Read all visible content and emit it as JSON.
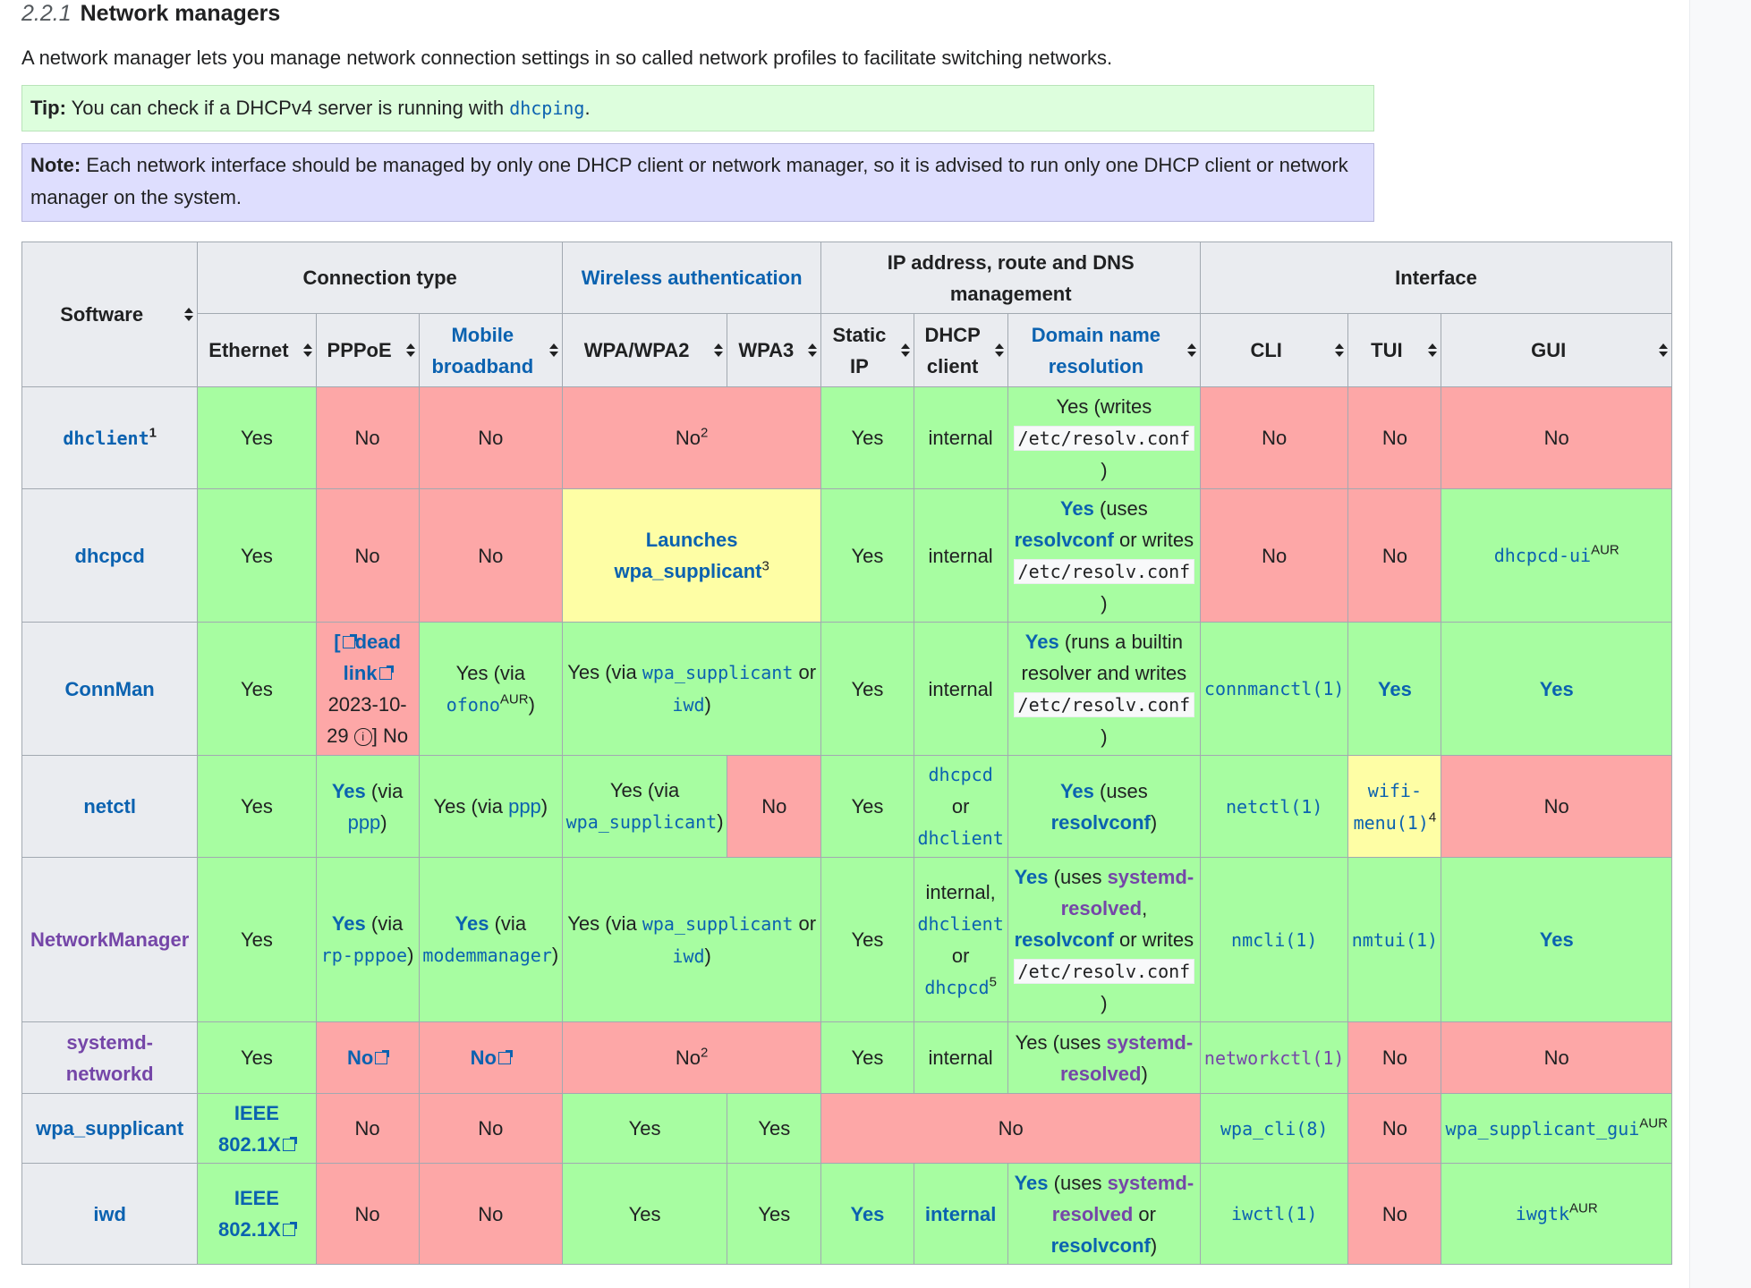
{
  "section": {
    "number": "2.2.1",
    "title": "Network managers"
  },
  "intro": "A network manager lets you manage network connection settings in so called network profiles to facilitate switching networks.",
  "tip": {
    "label": "Tip:",
    "text_before": "You can check if a DHCPv4 server is running with",
    "link": "dhcping",
    "text_after": "."
  },
  "note": {
    "label": "Note:",
    "text": "Each network interface should be managed by only one DHCP client or network manager, so it is advised to run only one DHCP client or network manager on the system."
  },
  "headers": {
    "software": "Software",
    "connection_type": "Connection type",
    "wireless_auth": "Wireless authentication",
    "ip_mgmt": "IP address, route and DNS management",
    "interface": "Interface",
    "ethernet": "Ethernet",
    "pppoe": "PPPoE",
    "mobile_broadband": "Mobile broadband",
    "wpa_wpa2": "WPA/WPA2",
    "wpa3": "WPA3",
    "static_ip": "Static IP",
    "dhcp_client": "DHCP client",
    "dns": "Domain name resolution",
    "cli": "CLI",
    "tui": "TUI",
    "gui": "GUI"
  },
  "words": {
    "yes": "Yes",
    "no": "No",
    "internal": "internal",
    "or": "or",
    "via_open": "(via",
    "close": ")",
    "resolv_path": "/etc/resolv.conf",
    "yes_writes": "Yes (writes",
    "uses_open": "(uses",
    "or_writes": "or writes",
    "aur": "AUR",
    "internal_comma": "internal,",
    "comma": ","
  },
  "rows": {
    "dhclient": {
      "name": "dhclient",
      "fn": "1",
      "wireless": "No",
      "wireless_fn": "2"
    },
    "dhcpcd": {
      "name": "dhcpcd",
      "wireless": "Launches wpa_supplicant",
      "wireless_fn": "3",
      "dns_link": "resolvconf",
      "gui": "dhcpcd-ui"
    },
    "connman": {
      "name": "ConnMan",
      "dead_link": "dead link",
      "dead_date": "2023-10-29",
      "info": "i",
      "pppoe_no": "] No",
      "mobile_tool": "ofono",
      "wifi_tool1": "wpa_supplicant",
      "wifi_tool2": "iwd",
      "dns_text": "(runs a builtin resolver and writes",
      "cli": "connmanctl(1)"
    },
    "netctl": {
      "name": "netctl",
      "pppoe_tool": "ppp",
      "mobile_text": "Yes (via",
      "mobile_tool": "ppp",
      "wpa_text": "Yes (via",
      "wpa_tool": "wpa_supplicant",
      "dhcp1": "dhcpcd",
      "dhcp2": "dhclient",
      "dns_tool": "resolvconf",
      "cli": "netctl(1)",
      "tui": "wifi-menu(1)",
      "tui_fn": "4"
    },
    "networkmanager": {
      "name": "NetworkManager",
      "pppoe_tool": "rp-pppoe",
      "mobile_tool": "modemmanager",
      "wifi_tool1": "wpa_supplicant",
      "wifi_tool2": "iwd",
      "dhcp1": "dhclient",
      "dhcp2": "dhcpcd",
      "dhcp_fn": "5",
      "dns_tool1": "systemd-resolved",
      "dns_tool2": "resolvconf",
      "cli": "nmcli(1)",
      "tui": "nmtui(1)"
    },
    "networkd": {
      "name": "systemd-networkd",
      "wireless": "No",
      "wireless_fn": "2",
      "dns_text": "Yes (uses",
      "dns_tool": "systemd-resolved",
      "cli": "networkctl(1)"
    },
    "wpa_supplicant": {
      "name": "wpa_supplicant",
      "ethernet": "IEEE 802.1X",
      "cli": "wpa_cli(8)",
      "gui": "wpa_supplicant_gui"
    },
    "iwd": {
      "name": "iwd",
      "ethernet": "IEEE 802.1X",
      "dns_tool1": "systemd-resolved",
      "dns_or": "or",
      "dns_tool2": "resolvconf",
      "cli": "iwctl(1)",
      "gui": "iwgtk"
    }
  },
  "colors": {
    "yes": "#a7fda1",
    "no": "#fda7a7",
    "partial": "#fefea5",
    "header": "#eaecf0",
    "link": "#0b62b0",
    "visited": "#7546a8",
    "tip_bg": "#ddfedd",
    "note_bg": "#dedefe"
  }
}
